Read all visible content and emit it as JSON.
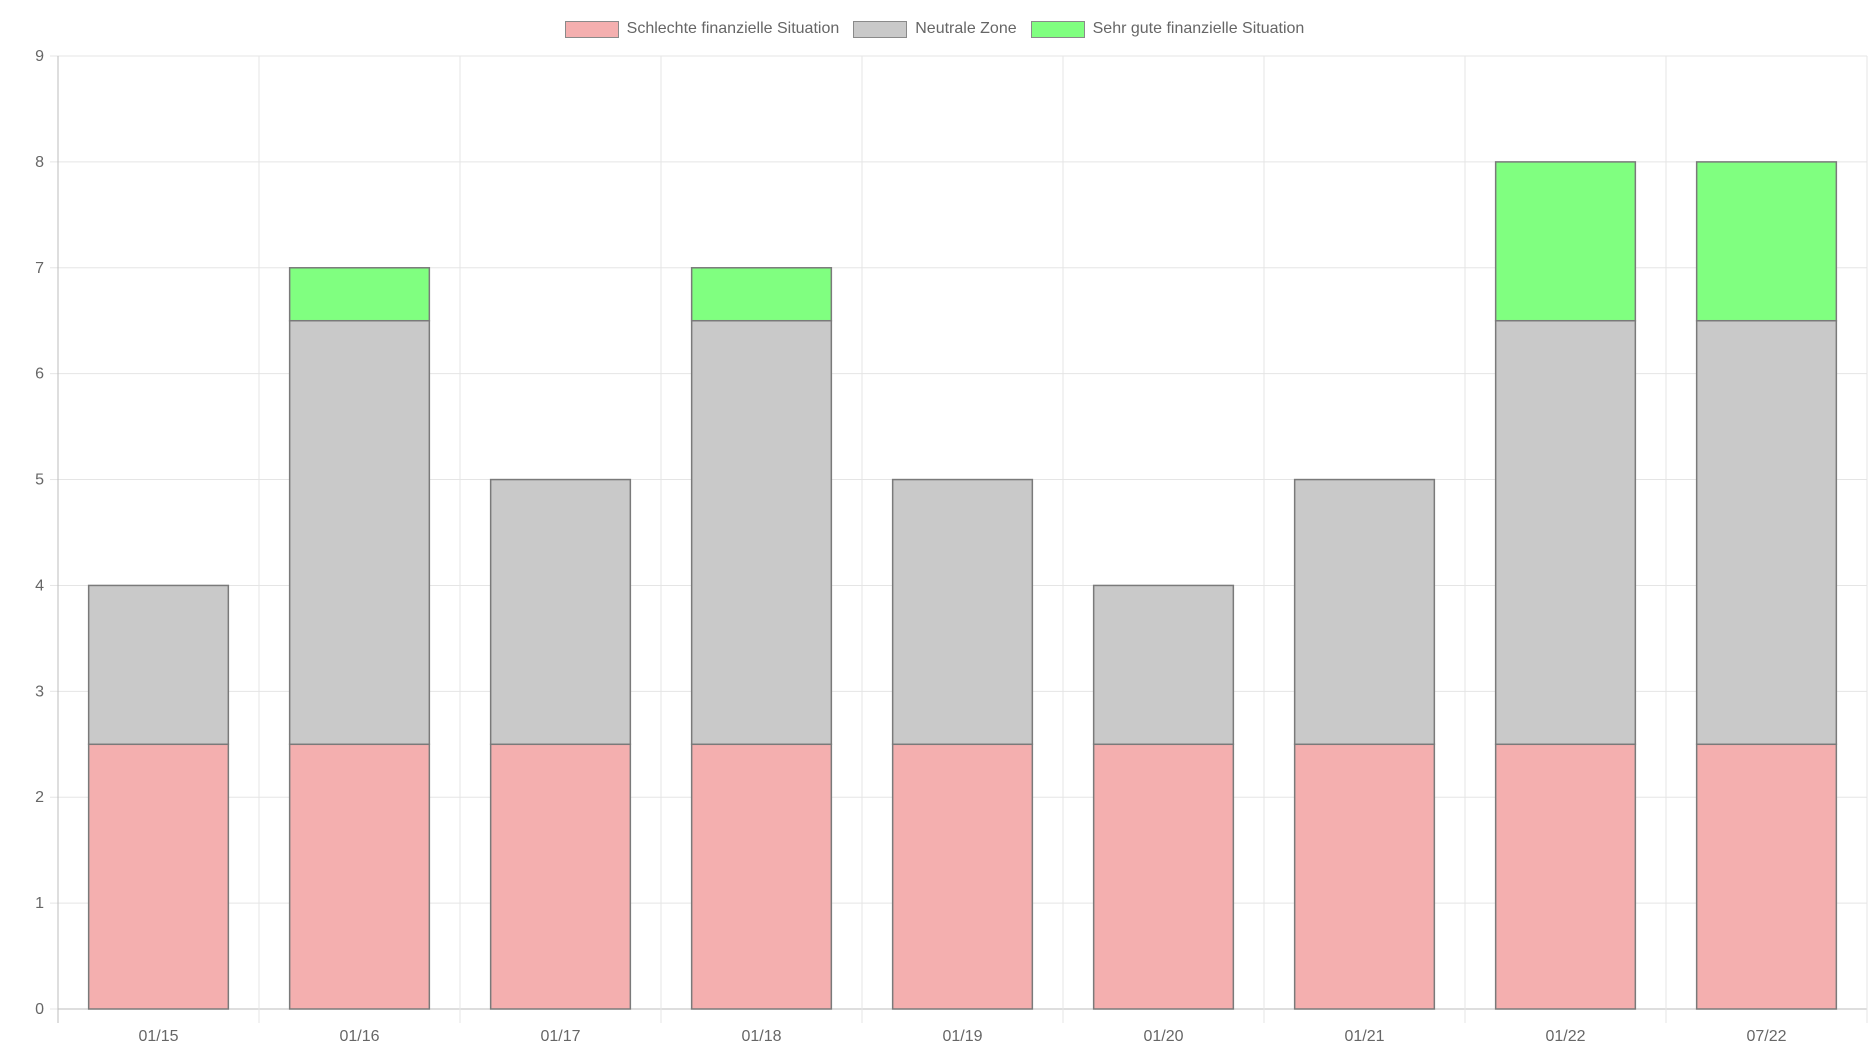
{
  "chart_data": {
    "type": "bar",
    "stacked": true,
    "categories": [
      "01/15",
      "01/16",
      "01/17",
      "01/18",
      "01/19",
      "01/20",
      "01/21",
      "01/22",
      "07/22"
    ],
    "series": [
      {
        "name": "Schlechte finanzielle Situation",
        "color": "#f4afaf",
        "values": [
          2.5,
          2.5,
          2.5,
          2.5,
          2.5,
          2.5,
          2.5,
          2.5,
          2.5
        ]
      },
      {
        "name": "Neutrale Zone",
        "color": "#c9c9c9",
        "values": [
          1.5,
          4,
          2.5,
          4,
          2.5,
          1.5,
          2.5,
          4,
          4
        ]
      },
      {
        "name": "Sehr gute finanzielle Situation",
        "color": "#80ff80",
        "values": [
          0,
          0.5,
          0,
          0.5,
          0,
          0,
          0,
          1.5,
          1.5
        ]
      }
    ],
    "ylim": [
      0,
      9
    ],
    "yticks": [
      "0",
      "1",
      "2",
      "3",
      "4",
      "5",
      "6",
      "7",
      "8",
      "9"
    ],
    "grid": true,
    "legend_position": "top-center",
    "bar_border_color": "#7a7a7a",
    "grid_color": "#e5e5e5",
    "axis_color": "#bdbdbd",
    "text_color": "#666666"
  }
}
